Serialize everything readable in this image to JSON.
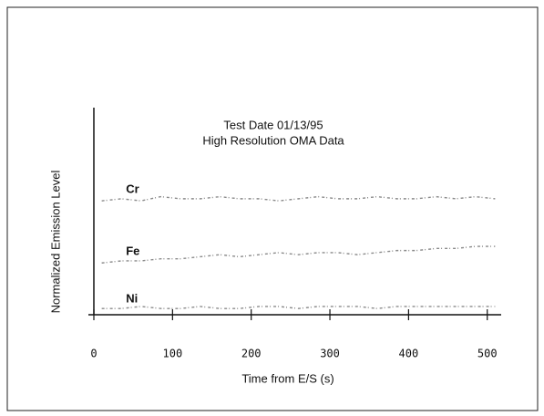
{
  "chart_data": {
    "type": "line",
    "title": "Test Date  01/13/95",
    "subtitle": "High Resolution OMA Data",
    "x_label": "Time from E/S (s)",
    "y_label": "Normalized Emission Level",
    "xlim": [
      0,
      520
    ],
    "xticks": [
      0,
      100,
      200,
      300,
      400,
      500
    ],
    "ylim": [
      0,
      1
    ],
    "x": [
      10,
      35,
      60,
      85,
      110,
      135,
      160,
      185,
      210,
      235,
      260,
      285,
      310,
      335,
      360,
      385,
      410,
      435,
      460,
      485,
      510
    ],
    "series": [
      {
        "name": "Cr",
        "color": "#8a8a8a",
        "values": [
          0.55,
          0.56,
          0.55,
          0.57,
          0.56,
          0.56,
          0.57,
          0.56,
          0.56,
          0.55,
          0.56,
          0.57,
          0.56,
          0.56,
          0.57,
          0.56,
          0.56,
          0.57,
          0.56,
          0.57,
          0.56
        ]
      },
      {
        "name": "Fe",
        "color": "#8a8a8a",
        "values": [
          0.25,
          0.26,
          0.26,
          0.27,
          0.27,
          0.28,
          0.29,
          0.28,
          0.29,
          0.3,
          0.29,
          0.3,
          0.3,
          0.29,
          0.3,
          0.31,
          0.31,
          0.32,
          0.32,
          0.33,
          0.33
        ]
      },
      {
        "name": "Ni",
        "color": "#8a8a8a",
        "values": [
          0.03,
          0.03,
          0.04,
          0.03,
          0.03,
          0.04,
          0.03,
          0.03,
          0.04,
          0.04,
          0.03,
          0.04,
          0.04,
          0.04,
          0.03,
          0.04,
          0.04,
          0.04,
          0.04,
          0.04,
          0.04
        ]
      }
    ]
  }
}
